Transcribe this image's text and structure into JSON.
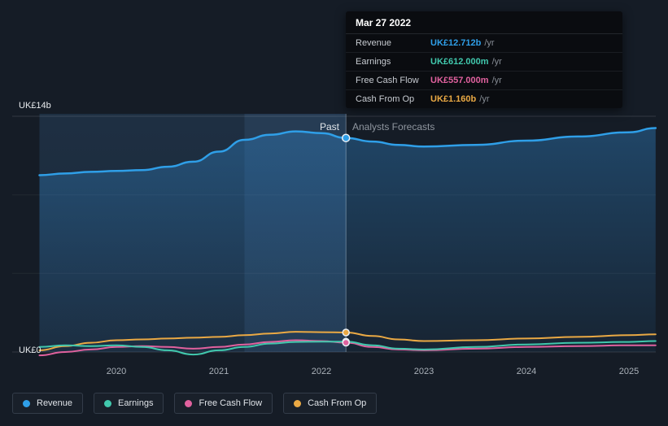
{
  "tooltip": {
    "date": "Mar 27 2022",
    "rows": [
      {
        "label": "Revenue",
        "value": "UK£12.712b",
        "suffix": "/yr",
        "color": "#2f9fe8"
      },
      {
        "label": "Earnings",
        "value": "UK£612.000m",
        "suffix": "/yr",
        "color": "#41c8ad"
      },
      {
        "label": "Free Cash Flow",
        "value": "UK£557.000m",
        "suffix": "/yr",
        "color": "#e0619e"
      },
      {
        "label": "Cash From Op",
        "value": "UK£1.160b",
        "suffix": "/yr",
        "color": "#eaa944"
      }
    ]
  },
  "axis": {
    "y_top": "UK£14b",
    "y_bottom": "UK£0",
    "x_ticks": [
      "2020",
      "2021",
      "2022",
      "2023",
      "2024",
      "2025"
    ]
  },
  "labels": {
    "past": "Past",
    "forecast": "Analysts Forecasts"
  },
  "legend": [
    {
      "label": "Revenue",
      "color": "#2f9fe8"
    },
    {
      "label": "Earnings",
      "color": "#41c8ad"
    },
    {
      "label": "Free Cash Flow",
      "color": "#e0619e"
    },
    {
      "label": "Cash From Op",
      "color": "#eaa944"
    }
  ],
  "colors": {
    "background": "#151c26",
    "revenue": "#2f9fe8",
    "earnings": "#41c8ad",
    "free_cash_flow": "#e0619e",
    "cash_from_op": "#eaa944"
  },
  "chart_data": {
    "type": "line",
    "title": "Revenue, earnings and cash flow history with analyst forecasts",
    "x_unit": "year",
    "y_unit": "UK£ billions",
    "ylim": [
      0,
      14
    ],
    "x_start": 2019.25,
    "x_end": 2025.26,
    "divider_x": 2022.24,
    "divider_date": "Mar 27 2022",
    "highlight_start_x": 2021.25,
    "grid": true,
    "legend_position": "bottom",
    "x": [
      2019.25,
      2019.5,
      2019.75,
      2020.0,
      2020.25,
      2020.5,
      2020.75,
      2021.0,
      2021.25,
      2021.5,
      2021.75,
      2022.0,
      2022.24,
      2022.5,
      2022.75,
      2023.0,
      2023.5,
      2024.0,
      2024.5,
      2025.0,
      2025.26
    ],
    "series": [
      {
        "name": "Revenue",
        "color": "#2f9fe8",
        "area": true,
        "values": [
          10.5,
          10.6,
          10.7,
          10.75,
          10.8,
          11.0,
          11.3,
          11.9,
          12.6,
          12.9,
          13.1,
          13.0,
          12.712,
          12.5,
          12.3,
          12.2,
          12.3,
          12.55,
          12.8,
          13.05,
          13.3
        ]
      },
      {
        "name": "Earnings",
        "color": "#41c8ad",
        "area": false,
        "values": [
          0.3,
          0.4,
          0.35,
          0.4,
          0.3,
          0.1,
          -0.15,
          0.1,
          0.3,
          0.5,
          0.6,
          0.62,
          0.612,
          0.4,
          0.2,
          0.15,
          0.3,
          0.45,
          0.55,
          0.6,
          0.65
        ]
      },
      {
        "name": "Free Cash Flow",
        "color": "#e0619e",
        "area": false,
        "values": [
          -0.2,
          0.0,
          0.15,
          0.3,
          0.35,
          0.3,
          0.2,
          0.3,
          0.45,
          0.6,
          0.7,
          0.65,
          0.557,
          0.3,
          0.15,
          0.1,
          0.2,
          0.3,
          0.35,
          0.4,
          0.4
        ]
      },
      {
        "name": "Cash From Op",
        "color": "#eaa944",
        "area": false,
        "values": [
          0.1,
          0.35,
          0.55,
          0.7,
          0.75,
          0.8,
          0.85,
          0.9,
          1.0,
          1.1,
          1.2,
          1.18,
          1.16,
          0.95,
          0.75,
          0.65,
          0.7,
          0.8,
          0.9,
          1.0,
          1.05
        ]
      }
    ],
    "marker_x": 2022.24,
    "marker_values": {
      "Revenue": 12.712,
      "Earnings": 0.612,
      "Free Cash Flow": 0.557,
      "Cash From Op": 1.16
    }
  }
}
